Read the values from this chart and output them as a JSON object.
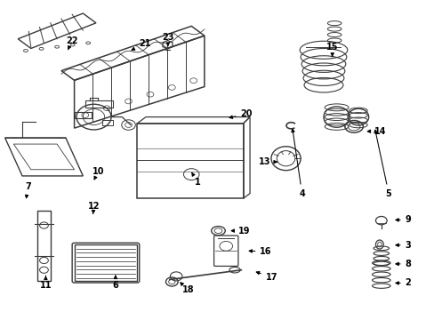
{
  "bg_color": "#ffffff",
  "line_color": "#3a3a3a",
  "label_positions": {
    "1": [
      0.455,
      0.425,
      0.44,
      0.455
    ],
    "2": [
      0.935,
      0.115,
      0.905,
      0.115
    ],
    "3": [
      0.935,
      0.235,
      0.905,
      0.235
    ],
    "4": [
      0.695,
      0.395,
      0.675,
      0.395
    ],
    "5": [
      0.895,
      0.395,
      0.865,
      0.395
    ],
    "6": [
      0.265,
      0.115,
      0.265,
      0.145
    ],
    "7": [
      0.065,
      0.415,
      0.075,
      0.38
    ],
    "8": [
      0.935,
      0.175,
      0.905,
      0.175
    ],
    "9": [
      0.935,
      0.31,
      0.905,
      0.31
    ],
    "10": [
      0.225,
      0.465,
      0.215,
      0.435
    ],
    "11": [
      0.105,
      0.115,
      0.105,
      0.155
    ],
    "12": [
      0.215,
      0.355,
      0.21,
      0.325
    ],
    "13": [
      0.615,
      0.495,
      0.65,
      0.495
    ],
    "14": [
      0.87,
      0.59,
      0.835,
      0.59
    ],
    "15": [
      0.765,
      0.855,
      0.765,
      0.825
    ],
    "16": [
      0.61,
      0.215,
      0.565,
      0.215
    ],
    "17": [
      0.625,
      0.135,
      0.58,
      0.155
    ],
    "18": [
      0.43,
      0.095,
      0.41,
      0.125
    ],
    "19": [
      0.56,
      0.28,
      0.525,
      0.28
    ],
    "20": [
      0.565,
      0.645,
      0.52,
      0.63
    ],
    "21": [
      0.33,
      0.865,
      0.295,
      0.84
    ],
    "22": [
      0.165,
      0.875,
      0.16,
      0.845
    ],
    "23": [
      0.385,
      0.885,
      0.385,
      0.855
    ]
  }
}
